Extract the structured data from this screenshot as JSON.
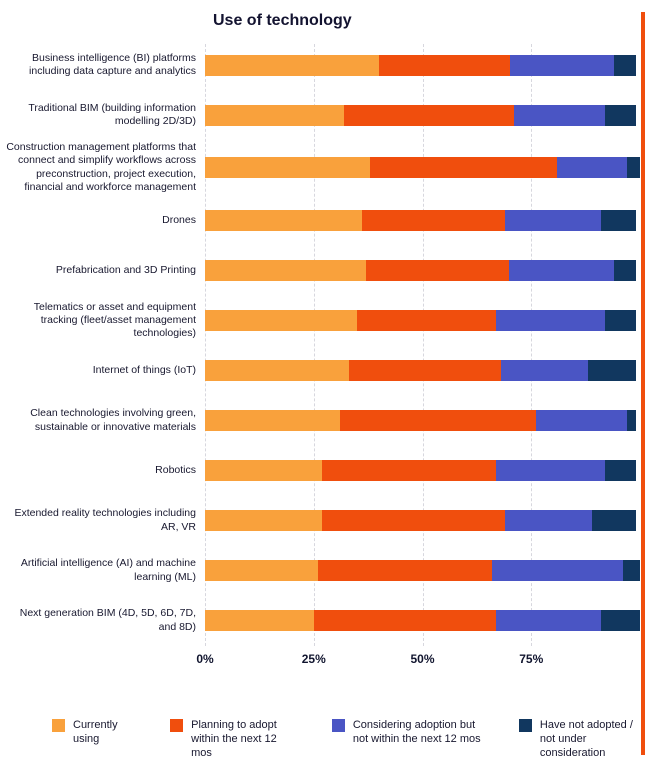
{
  "title": "Use of technology",
  "page": {
    "right_stripe_color": "#f04e0d"
  },
  "axis": {
    "xlim": [
      0,
      100
    ]
  },
  "chart_data": {
    "type": "bar",
    "stacked": true,
    "orientation": "horizontal",
    "title": "Use of technology",
    "grid": "dashed-vertical",
    "legend_position": "bottom",
    "xlim": [
      0,
      100
    ],
    "x_ticks": [
      {
        "label": "0%",
        "pos": 0
      },
      {
        "label": "25%",
        "pos": 25
      },
      {
        "label": "50%",
        "pos": 50
      },
      {
        "label": "75%",
        "pos": 75
      }
    ],
    "categories": [
      "Business intelligence (BI) platforms including data capture and analytics",
      "Traditional BIM (building information modelling 2D/3D)",
      "Construction management platforms that connect and simplify workflows across preconstruction, project execution, financial and workforce management",
      "Drones",
      "Prefabrication and 3D Printing",
      "Telematics or asset and equipment tracking (fleet/asset management technologies)",
      "Internet of things (IoT)",
      "Clean technologies involving green, sustainable or innovative materials",
      "Robotics",
      "Extended reality technologies including AR, VR",
      "Artificial intelligence (AI) and machine learning (ML)",
      "Next generation BIM (4D, 5D, 6D, 7D, and 8D)"
    ],
    "series": [
      {
        "name": "Currently using",
        "color": "#f9a13c",
        "values": [
          40,
          32,
          38,
          36,
          37,
          35,
          33,
          31,
          27,
          27,
          26,
          25
        ]
      },
      {
        "name": "Planning to adopt within the next 12 mos",
        "color": "#f04e0d",
        "values": [
          30,
          39,
          43,
          33,
          33,
          32,
          35,
          45,
          40,
          42,
          40,
          42
        ]
      },
      {
        "name": "Considering adoption but not within the next 12 mos",
        "color": "#4a55c4",
        "values": [
          24,
          21,
          16,
          22,
          24,
          25,
          20,
          21,
          25,
          20,
          30,
          24
        ]
      },
      {
        "name": "Have not adopted / not under consideration",
        "color": "#11375f",
        "values": [
          5,
          7,
          3,
          8,
          5,
          7,
          11,
          2,
          7,
          10,
          4,
          9
        ]
      }
    ]
  }
}
